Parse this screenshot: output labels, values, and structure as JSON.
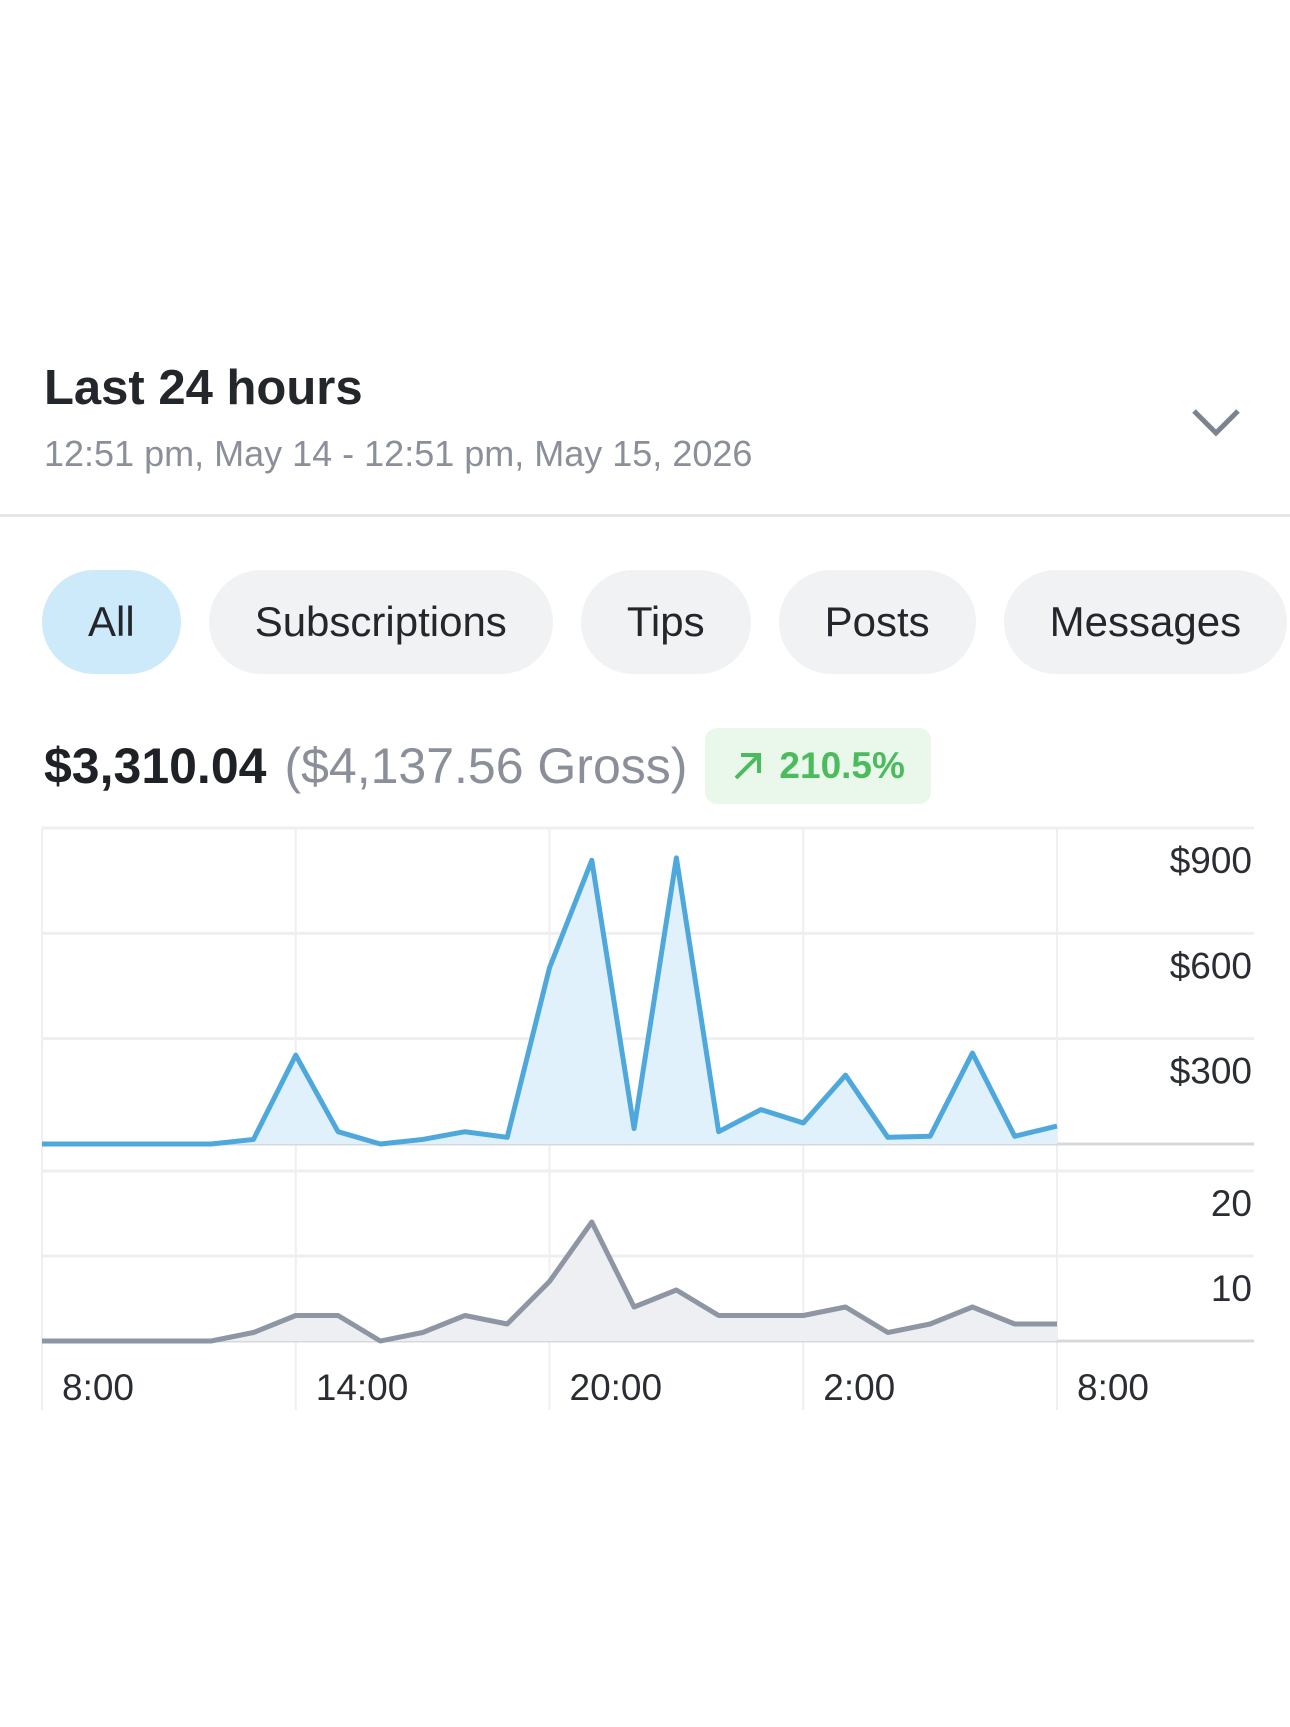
{
  "header": {
    "title": "Last 24 hours",
    "subtitle": "12:51 pm, May 14 - 12:51 pm, May 15, 2026"
  },
  "tabs": [
    {
      "label": "All",
      "active": true
    },
    {
      "label": "Subscriptions",
      "active": false
    },
    {
      "label": "Tips",
      "active": false
    },
    {
      "label": "Posts",
      "active": false
    },
    {
      "label": "Messages",
      "active": false
    }
  ],
  "summary": {
    "net": "$3,310.04",
    "gross": "($4,137.56 Gross)",
    "change": "210.5%"
  },
  "chart_data": [
    {
      "type": "line",
      "color": "#4ea8dc",
      "fill": "#e0f1fb",
      "ylim": [
        0,
        900
      ],
      "yticks": [
        {
          "value": 300,
          "label": "$300"
        },
        {
          "value": 600,
          "label": "$600"
        },
        {
          "value": 900,
          "label": "$900"
        }
      ],
      "grid": true,
      "values": [
        0,
        0,
        0,
        0,
        0,
        13,
        253,
        35,
        0,
        13,
        35,
        19,
        502,
        808,
        44,
        815,
        35,
        98,
        60,
        196,
        19,
        22,
        259,
        22,
        51
      ]
    },
    {
      "type": "line",
      "color": "#8e95a3",
      "fill": "#eeeff2",
      "ylim": [
        0,
        20
      ],
      "yticks": [
        10,
        20
      ],
      "grid": true,
      "categories": [
        "8:00",
        null,
        null,
        null,
        null,
        null,
        "14:00",
        null,
        null,
        null,
        null,
        null,
        "20:00",
        null,
        null,
        null,
        null,
        null,
        "2:00",
        null,
        null,
        null,
        null,
        null,
        "8:00"
      ],
      "values": [
        0,
        0,
        0,
        0,
        0,
        1,
        3,
        3,
        0,
        1,
        3,
        2,
        7,
        14,
        4,
        6,
        3,
        3,
        3,
        4,
        1,
        2,
        4,
        2,
        2
      ]
    }
  ]
}
